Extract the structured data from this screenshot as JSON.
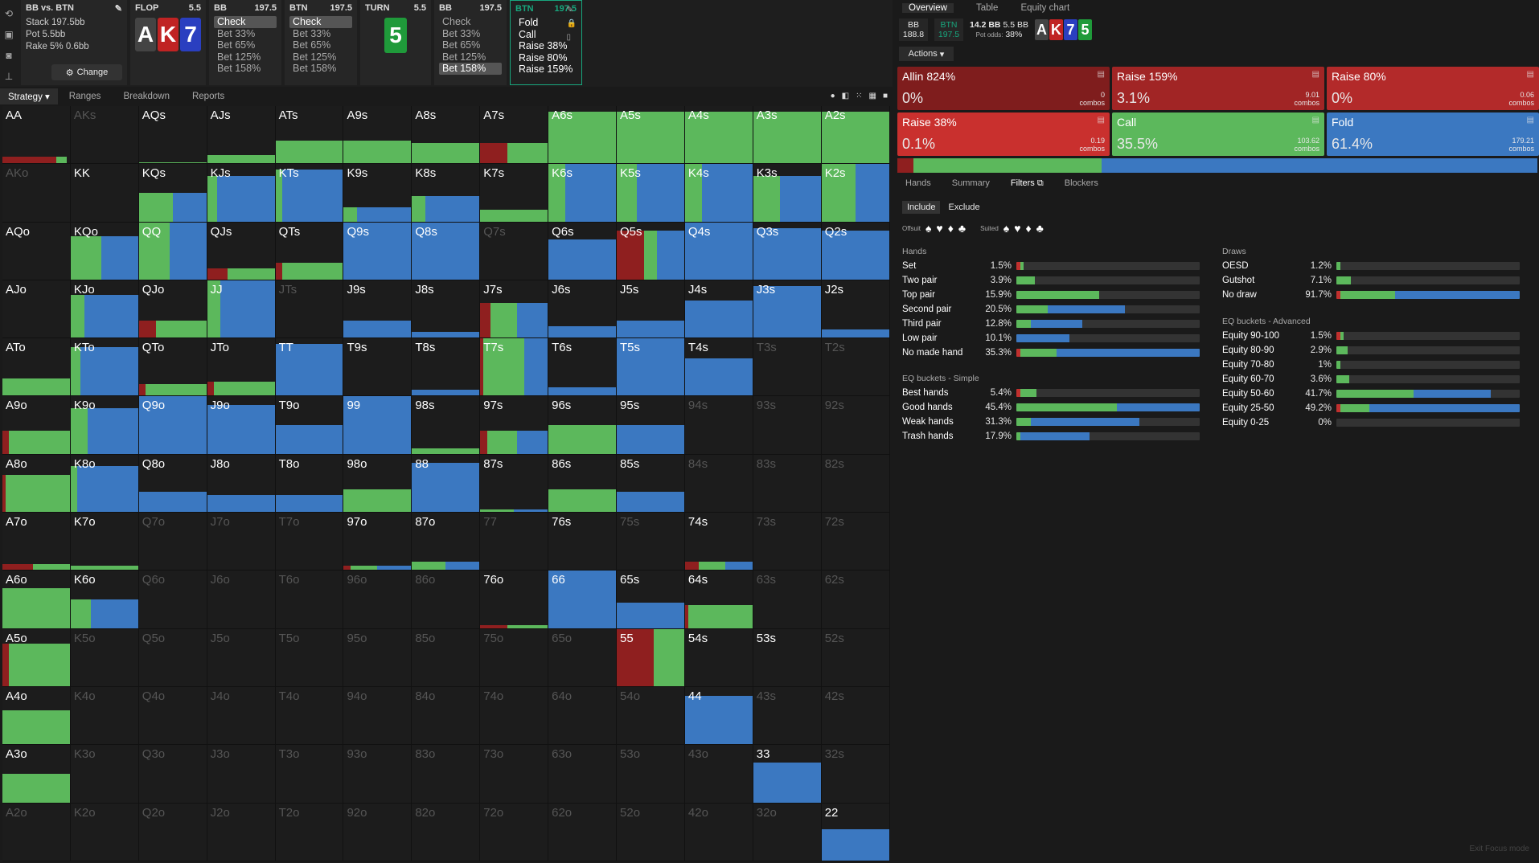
{
  "nav": {
    "matchup": {
      "title": "BB vs. BTN",
      "stack": "Stack 197.5bb",
      "pot": "Pot 5.5bb",
      "rake": "Rake 5% 0.6bb",
      "change_label": "Change"
    },
    "flop": {
      "title": "FLOP",
      "pot": "5.5",
      "cards": [
        "A",
        "K",
        "7"
      ]
    },
    "tiles": [
      {
        "player": "BB",
        "stack": "197.5",
        "actions": [
          "Check",
          "Bet 33%",
          "Bet 65%",
          "Bet 125%",
          "Bet 158%"
        ],
        "selected": 0
      },
      {
        "player": "BTN",
        "stack": "197.5",
        "actions": [
          "Check",
          "Bet 33%",
          "Bet 65%",
          "Bet 125%",
          "Bet 158%"
        ],
        "selected": 0
      },
      {
        "player": "TURN",
        "stack": "5.5",
        "actions": [],
        "selected": -1
      },
      {
        "player": "BB",
        "stack": "197.5",
        "actions": [
          "Check",
          "Bet 33%",
          "Bet 65%",
          "Bet 125%",
          "Bet 158%"
        ],
        "selected": 4
      },
      {
        "player": "BTN",
        "stack": "197.5",
        "actions": [
          "Fold",
          "Call",
          "Raise 38%",
          "Raise 80%",
          "Raise 159%"
        ],
        "selected": -1
      }
    ],
    "turn_card": "5"
  },
  "tabs": {
    "strategy": "Strategy",
    "ranges": "Ranges",
    "breakdown": "Breakdown",
    "reports": "Reports"
  },
  "colors": {
    "red": "#8f1f1f",
    "green": "#5cb85c",
    "blue": "#3b78c1",
    "bright_red": "#c0302e"
  },
  "grid": {
    "rows": [
      [
        "AA",
        "AKs",
        "AQs",
        "AJs",
        "ATs",
        "A9s",
        "A8s",
        "A7s",
        "A6s",
        "A5s",
        "A4s",
        "A3s",
        "A2s"
      ],
      [
        "AKo",
        "KK",
        "KQs",
        "KJs",
        "KTs",
        "K9s",
        "K8s",
        "K7s",
        "K6s",
        "K5s",
        "K4s",
        "K3s",
        "K2s"
      ],
      [
        "AQo",
        "KQo",
        "QQ",
        "QJs",
        "QTs",
        "Q9s",
        "Q8s",
        "Q7s",
        "Q6s",
        "Q5s",
        "Q4s",
        "Q3s",
        "Q2s"
      ],
      [
        "AJo",
        "KJo",
        "QJo",
        "JJ",
        "JTs",
        "J9s",
        "J8s",
        "J7s",
        "J6s",
        "J5s",
        "J4s",
        "J3s",
        "J2s"
      ],
      [
        "ATo",
        "KTo",
        "QTo",
        "JTo",
        "TT",
        "T9s",
        "T8s",
        "T7s",
        "T6s",
        "T5s",
        "T4s",
        "T3s",
        "T2s"
      ],
      [
        "A9o",
        "K9o",
        "Q9o",
        "J9o",
        "T9o",
        "99",
        "98s",
        "97s",
        "96s",
        "95s",
        "94s",
        "93s",
        "92s"
      ],
      [
        "A8o",
        "K8o",
        "Q8o",
        "J8o",
        "T8o",
        "98o",
        "88",
        "87s",
        "86s",
        "85s",
        "84s",
        "83s",
        "82s"
      ],
      [
        "A7o",
        "K7o",
        "Q7o",
        "J7o",
        "T7o",
        "97o",
        "87o",
        "77",
        "76s",
        "75s",
        "74s",
        "73s",
        "72s"
      ],
      [
        "A6o",
        "K6o",
        "Q6o",
        "J6o",
        "T6o",
        "96o",
        "86o",
        "76o",
        "66",
        "65s",
        "64s",
        "63s",
        "62s"
      ],
      [
        "A5o",
        "K5o",
        "Q5o",
        "J5o",
        "T5o",
        "95o",
        "85o",
        "75o",
        "65o",
        "55",
        "54s",
        "53s",
        "52s"
      ],
      [
        "A4o",
        "K4o",
        "Q4o",
        "J4o",
        "T4o",
        "94o",
        "84o",
        "74o",
        "64o",
        "54o",
        "44",
        "43s",
        "42s"
      ],
      [
        "A3o",
        "K3o",
        "Q3o",
        "J3o",
        "T3o",
        "93o",
        "83o",
        "73o",
        "63o",
        "53o",
        "43o",
        "33",
        "32s"
      ],
      [
        "A2o",
        "K2o",
        "Q2o",
        "J2o",
        "T2o",
        "92o",
        "82o",
        "72o",
        "62o",
        "52o",
        "42o",
        "32o",
        "22"
      ]
    ]
  },
  "right": {
    "tabs": [
      "Overview",
      "Table",
      "Equity chart"
    ],
    "bb": {
      "label": "BB",
      "stack": "188.8"
    },
    "btn": {
      "label": "BTN",
      "stack": "197.5"
    },
    "pot": "14.2 BB",
    "bb_small": "5.5 BB",
    "pot_odds_label": "Pot odds:",
    "pot_odds": "38%",
    "board": [
      "A",
      "K",
      "7",
      "5"
    ],
    "actions_label": "Actions",
    "boxes": [
      {
        "name": "Allin 824%",
        "pct": "0%",
        "combos": "0",
        "color": "#7f1d1d"
      },
      {
        "name": "Raise 159%",
        "pct": "3.1%",
        "combos": "9.01",
        "color": "#a12525"
      },
      {
        "name": "Raise 80%",
        "pct": "0%",
        "combos": "0.06",
        "color": "#b32a2a"
      },
      {
        "name": "Raise 38%",
        "pct": "0.1%",
        "combos": "0.19",
        "color": "#c9302e"
      },
      {
        "name": "Call",
        "pct": "35.5%",
        "combos": "103.62",
        "color": "#5cb85c"
      },
      {
        "name": "Fold",
        "pct": "61.4%",
        "combos": "179.21",
        "color": "#3b78c1"
      }
    ],
    "combos_label": "combos",
    "subtabs": [
      "Hands",
      "Summary",
      "Filters",
      "Blockers"
    ],
    "include": "Include",
    "exclude": "Exclude",
    "offsuit": "Offsuit",
    "suited": "Suited",
    "hands_title": "Hands",
    "hands": [
      {
        "label": "Set",
        "pct": "1.5%",
        "r": 2,
        "g": 2,
        "b": 0
      },
      {
        "label": "Two pair",
        "pct": "3.9%",
        "r": 0,
        "g": 10,
        "b": 0
      },
      {
        "label": "Top pair",
        "pct": "15.9%",
        "r": 0,
        "g": 45,
        "b": 0
      },
      {
        "label": "Second pair",
        "pct": "20.5%",
        "r": 0,
        "g": 17,
        "b": 42
      },
      {
        "label": "Third pair",
        "pct": "12.8%",
        "r": 0,
        "g": 8,
        "b": 28
      },
      {
        "label": "Low pair",
        "pct": "10.1%",
        "r": 0,
        "g": 0,
        "b": 29
      },
      {
        "label": "No made hand",
        "pct": "35.3%",
        "r": 2,
        "g": 20,
        "b": 78
      }
    ],
    "eq_simple_title": "EQ buckets - Simple",
    "eq_simple": [
      {
        "label": "Best hands",
        "pct": "5.4%",
        "r": 2,
        "g": 9,
        "b": 0
      },
      {
        "label": "Good hands",
        "pct": "45.4%",
        "r": 0,
        "g": 55,
        "b": 45
      },
      {
        "label": "Weak hands",
        "pct": "31.3%",
        "r": 0,
        "g": 8,
        "b": 59
      },
      {
        "label": "Trash hands",
        "pct": "17.9%",
        "r": 0,
        "g": 2,
        "b": 38
      }
    ],
    "draws_title": "Draws",
    "draws": [
      {
        "label": "OESD",
        "pct": "1.2%",
        "r": 0,
        "g": 2,
        "b": 0
      },
      {
        "label": "Gutshot",
        "pct": "7.1%",
        "r": 0,
        "g": 8,
        "b": 0
      },
      {
        "label": "No draw",
        "pct": "91.7%",
        "r": 2,
        "g": 30,
        "b": 68
      }
    ],
    "eq_adv_title": "EQ buckets - Advanced",
    "eq_adv": [
      {
        "label": "Equity 90-100",
        "pct": "1.5%",
        "r": 2,
        "g": 2,
        "b": 0
      },
      {
        "label": "Equity 80-90",
        "pct": "2.9%",
        "r": 0,
        "g": 6,
        "b": 0
      },
      {
        "label": "Equity 70-80",
        "pct": "1%",
        "r": 0,
        "g": 2,
        "b": 0
      },
      {
        "label": "Equity 60-70",
        "pct": "3.6%",
        "r": 0,
        "g": 7,
        "b": 0
      },
      {
        "label": "Equity 50-60",
        "pct": "41.7%",
        "r": 0,
        "g": 42,
        "b": 42
      },
      {
        "label": "Equity 25-50",
        "pct": "49.2%",
        "r": 2,
        "g": 16,
        "b": 82
      },
      {
        "label": "Equity 0-25",
        "pct": "0%",
        "r": 0,
        "g": 0,
        "b": 0
      }
    ],
    "exit_focus": "Exit Focus mode"
  }
}
